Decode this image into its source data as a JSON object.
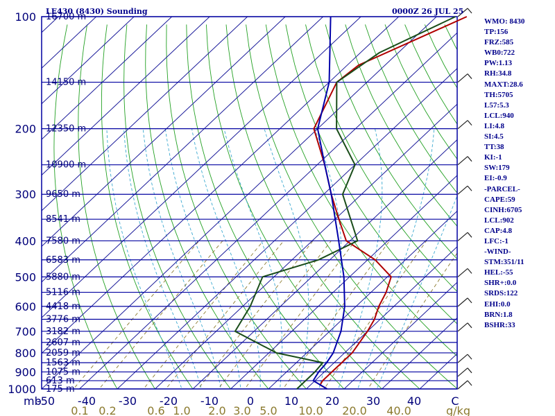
{
  "header": {
    "station": "LE430 (8430) Sounding",
    "valid": "0000Z 26 JUL 25"
  },
  "indices": [
    "WMO: 8430",
    "TP:156",
    "FRZ:585",
    "WB0:722",
    "PW:1.13",
    "RH:34.8",
    "MAXT:28.6",
    "TH:5705",
    "L57:5.3",
    "LCL:940",
    "LI:4.8",
    "SI:4.5",
    "TT:38",
    "KI:-1",
    "SW:179",
    "EI:-0.9",
    "-PARCEL-",
    "CAPE:59",
    "CINH:6705",
    "LCL:902",
    "CAP:4.8",
    "LFC:-1",
    "-WIND-",
    "STM:351/11",
    "HEL:-55",
    "SHR+:0.0",
    "SRDS:122",
    "EHI:0.0",
    "BRN:1.8",
    "BSHR:33"
  ],
  "chart_data": {
    "type": "skew-t log-p sounding",
    "pressure_unit": "mb",
    "temperature_unit": "C",
    "mixing_ratio_unit": "g/kg",
    "pressure_range": [
      1000,
      100
    ],
    "temperature_axis_range": [
      -50,
      50
    ],
    "pressure_ticks": [
      100,
      200,
      300,
      400,
      500,
      600,
      700,
      800,
      900,
      1000
    ],
    "temperature_ticks": [
      "-50",
      "-40",
      "-30",
      "-20",
      "-10",
      "0",
      "10",
      "20",
      "30",
      "40",
      "C"
    ],
    "mixing_ratio_ticks": [
      "0.1",
      "0.2",
      "0.6",
      "1.0",
      "2.0",
      "3.0",
      "5.0",
      "10.0",
      "20.0",
      "40.0"
    ],
    "height_levels": [
      {
        "p": 100,
        "label": "16700 m"
      },
      {
        "p": 150,
        "label": "14150 m"
      },
      {
        "p": 200,
        "label": "12350 m"
      },
      {
        "p": 250,
        "label": "10900 m"
      },
      {
        "p": 300,
        "label": "9650 m"
      },
      {
        "p": 350,
        "label": "8541 m"
      },
      {
        "p": 400,
        "label": "7580 m"
      },
      {
        "p": 450,
        "label": "6583 m"
      },
      {
        "p": 500,
        "label": "5880 m"
      },
      {
        "p": 550,
        "label": "5116 m"
      },
      {
        "p": 600,
        "label": "4418 m"
      },
      {
        "p": 650,
        "label": "3776 m"
      },
      {
        "p": 700,
        "label": "3182 m"
      },
      {
        "p": 750,
        "label": "2607 m"
      },
      {
        "p": 800,
        "label": "2059 m"
      },
      {
        "p": 850,
        "label": "1563 m"
      },
      {
        "p": 900,
        "label": "1075 m"
      },
      {
        "p": 950,
        "label": "613 m"
      },
      {
        "p": 1000,
        "label": "175 m"
      }
    ],
    "series": [
      {
        "color": "#b00000",
        "points": [
          [
            1000,
            25.5
          ],
          [
            975,
            22.5
          ],
          [
            950,
            22
          ],
          [
            925,
            22
          ],
          [
            900,
            22
          ],
          [
            850,
            22
          ],
          [
            800,
            22
          ],
          [
            700,
            20
          ],
          [
            650,
            18.5
          ],
          [
            600,
            16
          ],
          [
            550,
            14
          ],
          [
            500,
            11
          ],
          [
            450,
            2
          ],
          [
            400,
            -11
          ],
          [
            350,
            -19
          ],
          [
            300,
            -28
          ],
          [
            250,
            -38
          ],
          [
            200,
            -51
          ],
          [
            150,
            -58
          ],
          [
            135,
            -57
          ],
          [
            100,
            -42
          ]
        ]
      },
      {
        "color": "#1a4d1a",
        "points": [
          [
            1000,
            17.5
          ],
          [
            950,
            17.5
          ],
          [
            900,
            17.5
          ],
          [
            850,
            17
          ],
          [
            800,
            2
          ],
          [
            700,
            -15
          ],
          [
            600,
            -18
          ],
          [
            500,
            -23
          ],
          [
            450,
            -13
          ],
          [
            400,
            -8
          ],
          [
            300,
            -25
          ],
          [
            250,
            -30
          ],
          [
            200,
            -45
          ],
          [
            150,
            -58
          ],
          [
            125,
            -55
          ],
          [
            100,
            -45
          ]
        ]
      },
      {
        "color": "#0000aa",
        "points": [
          [
            1000,
            25.5
          ],
          [
            950,
            19.5
          ],
          [
            925,
            19
          ],
          [
            900,
            18.5
          ],
          [
            850,
            18
          ],
          [
            800,
            17
          ],
          [
            700,
            13
          ],
          [
            600,
            7
          ],
          [
            500,
            -1.5
          ],
          [
            400,
            -13
          ],
          [
            300,
            -28
          ],
          [
            250,
            -38
          ],
          [
            200,
            -50
          ],
          [
            150,
            -60
          ],
          [
            100,
            -78
          ]
        ]
      }
    ]
  }
}
